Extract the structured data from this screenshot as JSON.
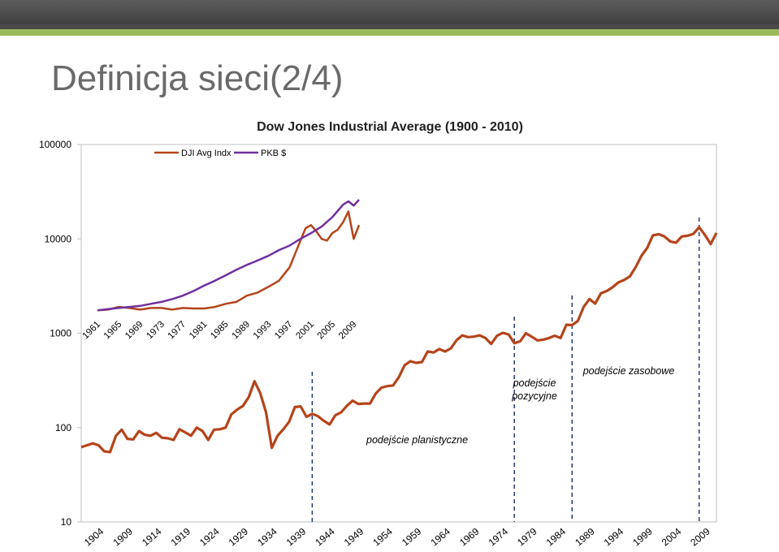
{
  "slide": {
    "title": "Definicja sieci(2/4)"
  },
  "chart_data": [
    {
      "type": "line",
      "title": "Dow Jones Industrial Average (1900 - 2010)",
      "yscale": "log",
      "ylim": [
        10,
        100000
      ],
      "ytick_labels": [
        "100000",
        "10000",
        "1000",
        "100",
        "10"
      ],
      "ytick_values": [
        100000,
        10000,
        1000,
        100,
        10
      ],
      "xlim": [
        1900,
        2010
      ],
      "xtick_labels": [
        "1904",
        "1909",
        "1914",
        "1919",
        "1924",
        "1929",
        "1934",
        "1939",
        "1944",
        "1949",
        "1954",
        "1959",
        "1964",
        "1969",
        "1974",
        "1979",
        "1984",
        "1989",
        "1994",
        "1999",
        "2004",
        "2009"
      ],
      "xtick_values": [
        1904,
        1909,
        1914,
        1919,
        1924,
        1929,
        1934,
        1939,
        1944,
        1949,
        1954,
        1959,
        1964,
        1969,
        1974,
        1979,
        1984,
        1989,
        1994,
        1999,
        2004,
        2009
      ],
      "grid": false,
      "series": [
        {
          "name": "DJI Avg Indx",
          "color": "#b5441b",
          "x": [
            1900,
            1901,
            1902,
            1903,
            1904,
            1905,
            1906,
            1907,
            1908,
            1909,
            1910,
            1911,
            1912,
            1913,
            1914,
            1915,
            1916,
            1917,
            1918,
            1919,
            1920,
            1921,
            1922,
            1923,
            1924,
            1925,
            1926,
            1927,
            1928,
            1929,
            1930,
            1931,
            1932,
            1933,
            1934,
            1935,
            1936,
            1937,
            1938,
            1939,
            1940,
            1941,
            1942,
            1943,
            1944,
            1945,
            1946,
            1947,
            1948,
            1949,
            1950,
            1951,
            1952,
            1953,
            1954,
            1955,
            1956,
            1957,
            1958,
            1959,
            1960,
            1961,
            1962,
            1963,
            1964,
            1965,
            1966,
            1967,
            1968,
            1969,
            1970,
            1971,
            1972,
            1973,
            1974,
            1975,
            1976,
            1977,
            1978,
            1979,
            1980,
            1981,
            1982,
            1983,
            1984,
            1985,
            1986,
            1987,
            1988,
            1989,
            1990,
            1991,
            1992,
            1993,
            1994,
            1995,
            1996,
            1997,
            1998,
            1999,
            2000,
            2001,
            2002,
            2003,
            2004,
            2005,
            2006,
            2007,
            2008,
            2009,
            2010
          ],
          "values": [
            62,
            65,
            68,
            65,
            56,
            55,
            82,
            95,
            76,
            75,
            92,
            84,
            82,
            88,
            78,
            77,
            74,
            96,
            89,
            82,
            100,
            92,
            74,
            95,
            96,
            100,
            138,
            155,
            170,
            210,
            310,
            232,
            145,
            61,
            82,
            96,
            115,
            165,
            168,
            130,
            140,
            132,
            118,
            108,
            135,
            145,
            170,
            193,
            178,
            180,
            180,
            230,
            265,
            275,
            280,
            342,
            458,
            505,
            485,
            495,
            640,
            625,
            680,
            640,
            690,
            845,
            950,
            910,
            920,
            950,
            890,
            770,
            940,
            1010,
            970,
            785,
            820,
            1000,
            920,
            840,
            855,
            890,
            940,
            890,
            1230,
            1220,
            1350,
            1900,
            2300,
            2060,
            2650,
            2800,
            3060,
            3450,
            3670,
            4000,
            5000,
            6600,
            8000,
            10900,
            11200,
            10600,
            9400,
            9100,
            10600,
            10800,
            11300,
            13300,
            11000,
            8800,
            11600
          ]
        }
      ],
      "annotations": {
        "planistyczne": "podejście planistyczne",
        "pozycyjne_line1": "podejście",
        "pozycyjne_line2": "pozycyjne",
        "zasobowe": "podejście zasobowe"
      },
      "vlines": [
        1940,
        1975,
        1985,
        2007
      ]
    },
    {
      "type": "line",
      "yscale": "log",
      "xlim": [
        1961,
        2010
      ],
      "xtick_labels": [
        "1961",
        "1965",
        "1969",
        "1973",
        "1977",
        "1981",
        "1985",
        "1989",
        "1993",
        "1997",
        "2001",
        "2005",
        "2009"
      ],
      "xtick_values": [
        1961,
        1965,
        1969,
        1973,
        1977,
        1981,
        1985,
        1989,
        1993,
        1997,
        2001,
        2005,
        2009
      ],
      "legend": "top",
      "series": [
        {
          "name": "DJI Avg Indx",
          "color": "#b5441b",
          "x": [
            1961,
            1963,
            1965,
            1967,
            1969,
            1971,
            1973,
            1975,
            1977,
            1979,
            1981,
            1983,
            1985,
            1987,
            1989,
            1991,
            1993,
            1995,
            1997,
            1999,
            2000,
            2001,
            2002,
            2003,
            2004,
            2005,
            2006,
            2007,
            2008,
            2009,
            2010
          ],
          "values": [
            1750,
            1780,
            1900,
            1850,
            1780,
            1850,
            1850,
            1780,
            1850,
            1830,
            1830,
            1900,
            2050,
            2150,
            2500,
            2700,
            3100,
            3600,
            5000,
            9500,
            13000,
            14000,
            12000,
            10000,
            9600,
            11500,
            12500,
            15000,
            19500,
            10000,
            14000
          ]
        },
        {
          "name": "PKB $",
          "color": "#7030a0",
          "x": [
            1961,
            1963,
            1965,
            1967,
            1969,
            1971,
            1973,
            1975,
            1977,
            1979,
            1981,
            1983,
            1985,
            1987,
            1989,
            1991,
            1993,
            1995,
            1997,
            1999,
            2001,
            2003,
            2005,
            2007,
            2008,
            2009,
            2010
          ],
          "values": [
            1750,
            1800,
            1850,
            1900,
            1950,
            2050,
            2150,
            2300,
            2500,
            2800,
            3200,
            3600,
            4100,
            4700,
            5300,
            5900,
            6600,
            7600,
            8500,
            10000,
            11500,
            13500,
            17000,
            23000,
            25000,
            22500,
            26000
          ]
        }
      ]
    }
  ]
}
